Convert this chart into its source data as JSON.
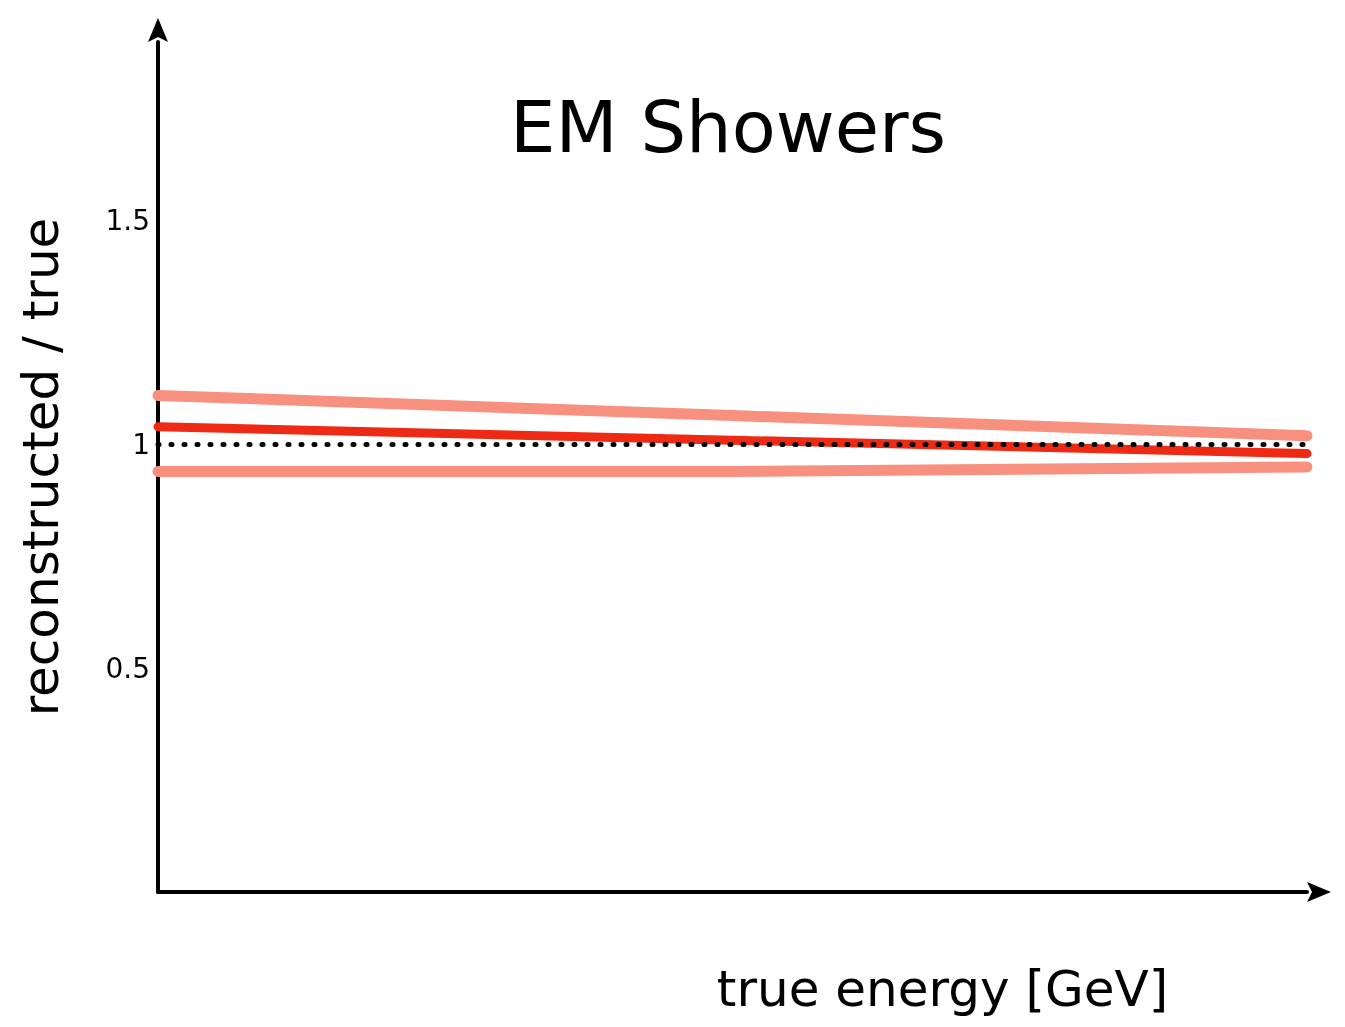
{
  "chart_data": {
    "type": "line",
    "title": "EM Showers",
    "xlabel": "true energy [GeV]",
    "ylabel": "reconstructed / true",
    "categories": [
      null,
      null,
      null
    ],
    "series": [
      {
        "color": "#f7907f",
        "values": [
          1.11,
          1.065,
          1.02
        ]
      },
      {
        "color": "#ee2a14",
        "values": [
          1.04,
          1.01,
          0.98
        ]
      },
      {
        "color": "#f7907f",
        "values": [
          0.94,
          0.94,
          0.95
        ]
      }
    ],
    "ylim": [
      0,
      1.9
    ],
    "yticks": [
      0.5,
      1,
      1.5
    ],
    "tick_labels": "y",
    "grid": false,
    "line_style": "solid",
    "ref_lines": [
      {
        "axis": "y",
        "value": 1,
        "color": "#000000",
        "line_style": "dotted"
      }
    ]
  }
}
